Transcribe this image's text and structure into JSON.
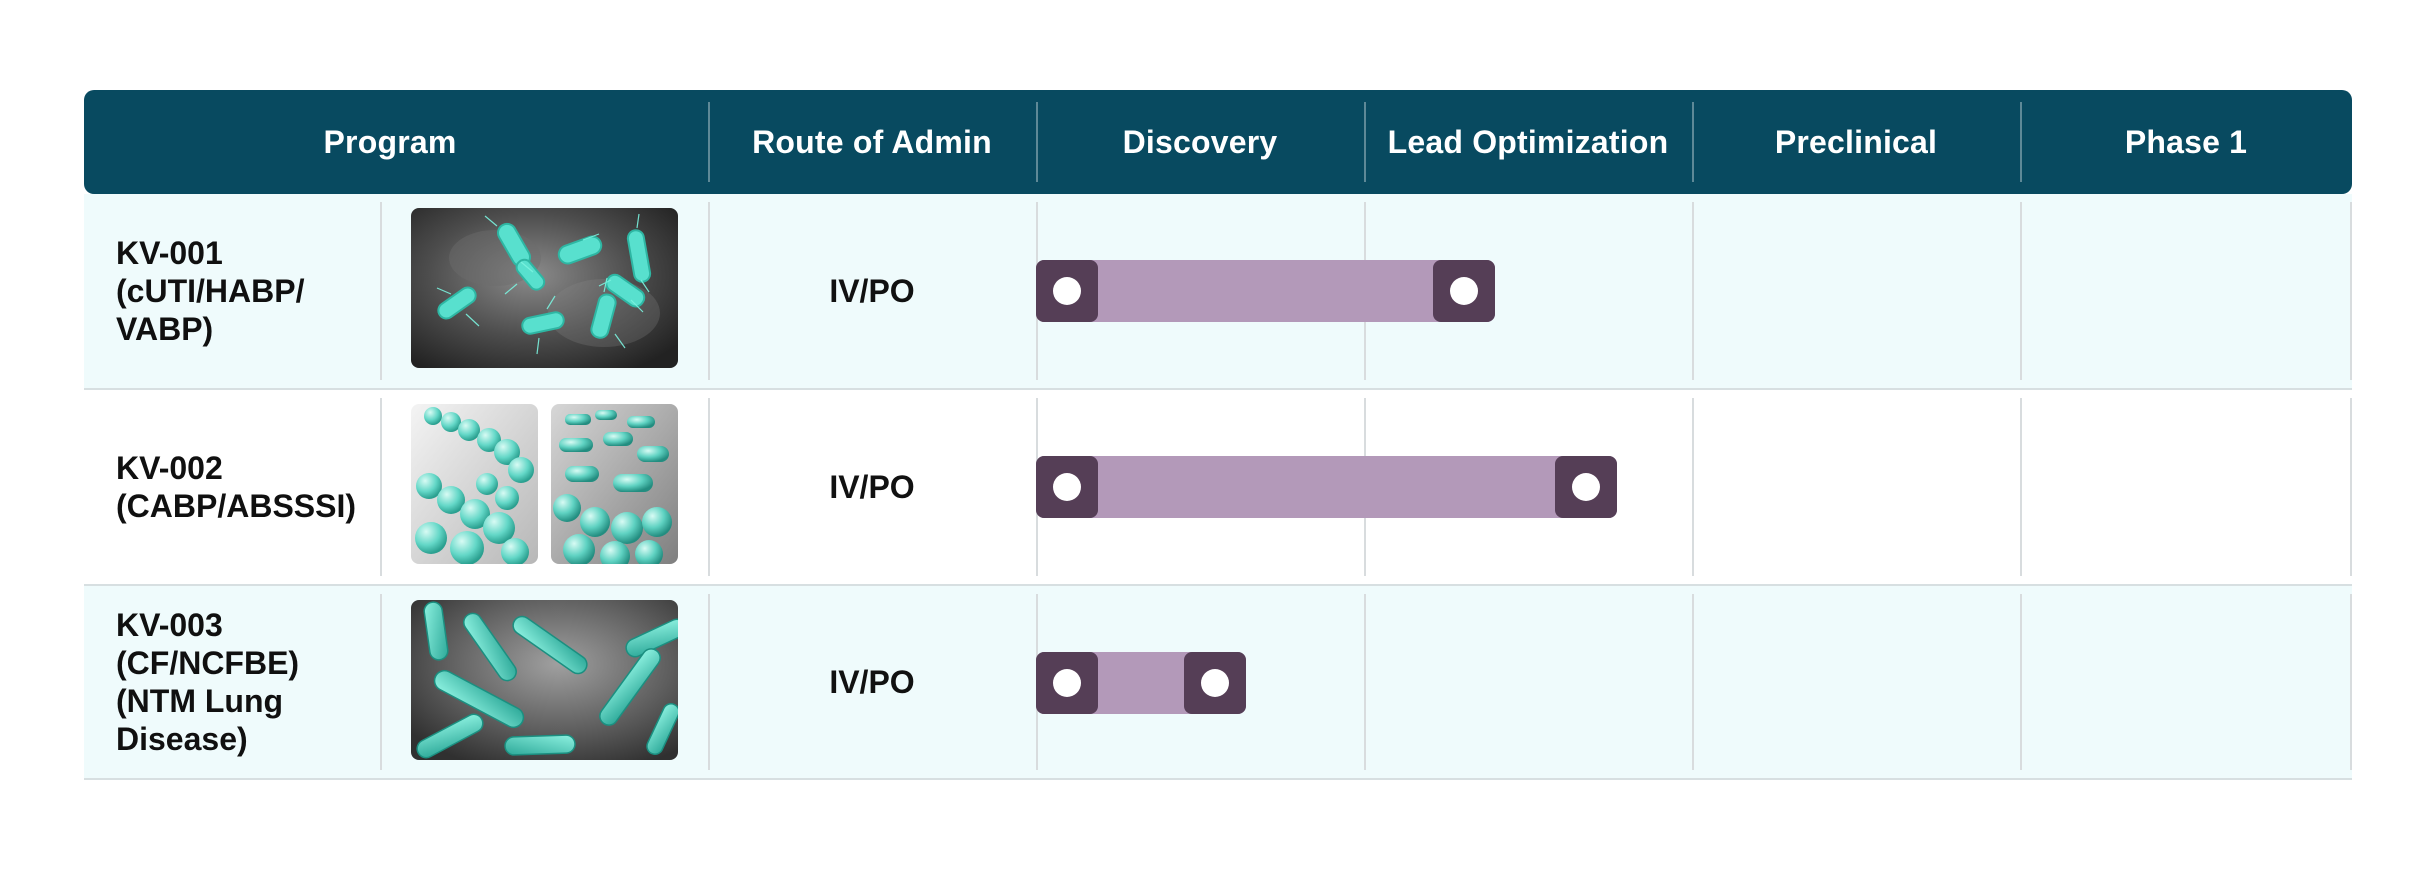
{
  "header": {
    "program": "Program",
    "route": "Route of Admin",
    "stages": [
      "Discovery",
      "Lead Optimization",
      "Preclinical",
      "Phase 1"
    ]
  },
  "colors": {
    "header_bg": "#084a60",
    "row_tint": "#effbfc",
    "bar_fill": "#b399b9",
    "bar_cap": "#553e56",
    "image_accent": "#5fe0cf"
  },
  "chart_data": {
    "type": "table",
    "stages": [
      "Discovery",
      "Lead Optimization",
      "Preclinical",
      "Phase 1"
    ],
    "programs": [
      {
        "name": "KV-001\n(cUTI/HABP/\nVABP)",
        "route": "IV/PO",
        "progress_stages": 1.4,
        "image_icon": "rod-bacteria-image",
        "image_count": 1
      },
      {
        "name": "KV-002\n(CABP/ABSSSI)",
        "route": "IV/PO",
        "progress_stages": 1.77,
        "image_icon": "cocci-bacteria-image",
        "image_count": 2
      },
      {
        "name": "KV-003\n(CF/NCFBE)\n(NTM Lung\nDisease)",
        "route": "IV/PO",
        "progress_stages": 0.64,
        "image_icon": "mycobacteria-image",
        "image_count": 1
      }
    ]
  }
}
